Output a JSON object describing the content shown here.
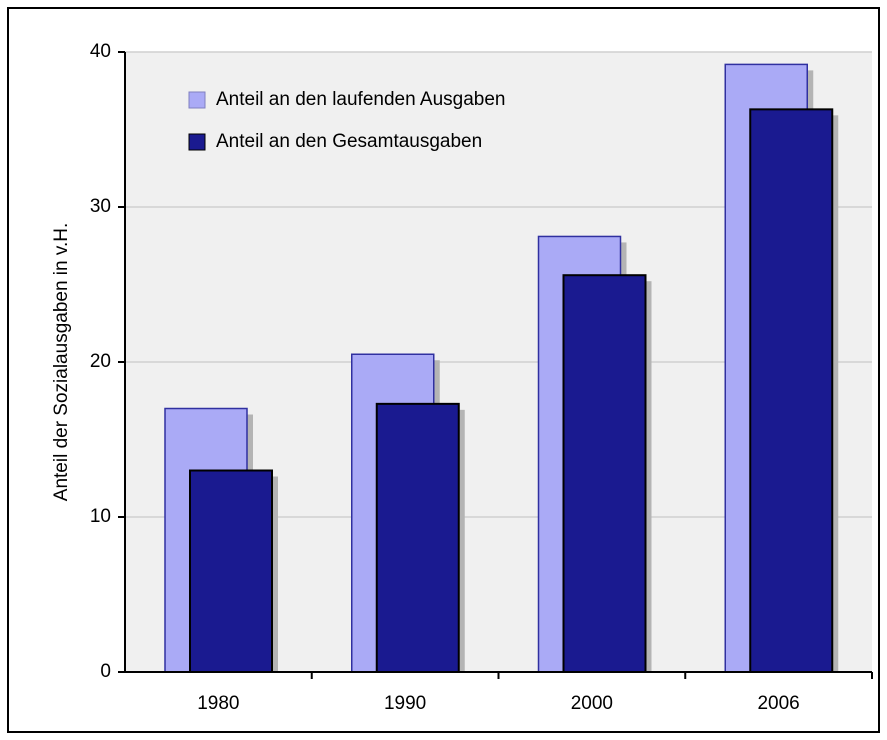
{
  "chart_data": {
    "type": "bar",
    "y_axis_label": "Anteil der Sozialausgaben in v.H.",
    "categories": [
      "1980",
      "1990",
      "2000",
      "2006"
    ],
    "series": [
      {
        "name": "Anteil an den laufenden Ausgaben",
        "color": "#aaaaf6",
        "values": [
          17.0,
          20.5,
          28.1,
          39.2
        ]
      },
      {
        "name": "Anteil an den Gesamtausgaben",
        "color": "#1a1a90",
        "values": [
          13.0,
          17.3,
          25.6,
          36.3
        ]
      }
    ],
    "ylim": [
      0,
      40
    ],
    "yticks": [
      0,
      10,
      20,
      30,
      40
    ],
    "grid": true,
    "legend": "upper left"
  }
}
